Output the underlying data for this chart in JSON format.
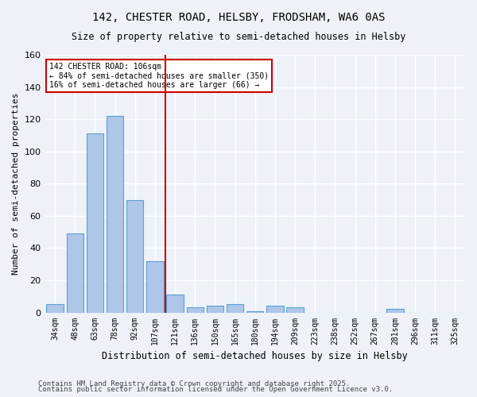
{
  "title_line1": "142, CHESTER ROAD, HELSBY, FRODSHAM, WA6 0AS",
  "title_line2": "Size of property relative to semi-detached houses in Helsby",
  "xlabel": "Distribution of semi-detached houses by size in Helsby",
  "ylabel": "Number of semi-detached properties",
  "footnote1": "Contains HM Land Registry data © Crown copyright and database right 2025.",
  "footnote2": "Contains public sector information licensed under the Open Government Licence v3.0.",
  "bar_labels": [
    "34sqm",
    "48sqm",
    "63sqm",
    "78sqm",
    "92sqm",
    "107sqm",
    "121sqm",
    "136sqm",
    "150sqm",
    "165sqm",
    "180sqm",
    "194sqm",
    "209sqm",
    "223sqm",
    "238sqm",
    "252sqm",
    "267sqm",
    "281sqm",
    "296sqm",
    "311sqm",
    "325sqm"
  ],
  "bar_values": [
    5,
    49,
    111,
    122,
    70,
    32,
    11,
    3,
    4,
    5,
    1,
    4,
    3,
    0,
    0,
    0,
    0,
    2,
    0,
    0,
    0
  ],
  "bar_color": "#aec6e8",
  "bar_edgecolor": "#5a9fd4",
  "background_color": "#eef2f8",
  "plot_bg_color": "#eef2f8",
  "grid_color": "#ffffff",
  "vline_x": 5.5,
  "vline_color": "#cc0000",
  "annotation_text": "142 CHESTER ROAD: 106sqm\n← 84% of semi-detached houses are smaller (350)\n16% of semi-detached houses are larger (66) →",
  "annotation_box_color": "#ffffff",
  "annotation_box_edgecolor": "#cc0000",
  "ylim": [
    0,
    160
  ],
  "yticks": [
    0,
    20,
    40,
    60,
    80,
    100,
    120,
    140,
    160
  ]
}
